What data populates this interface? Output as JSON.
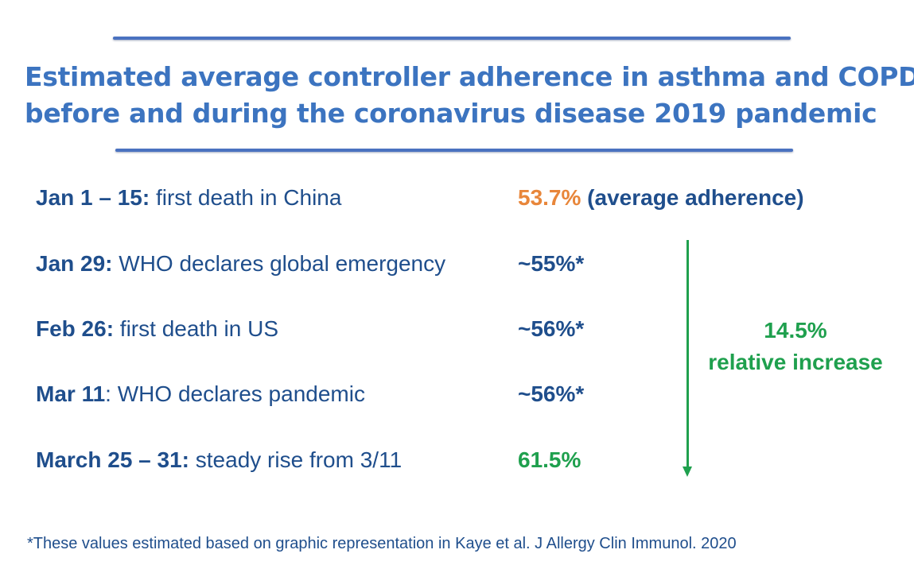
{
  "title": {
    "line1": "Estimated average controller adherence in asthma and COPD",
    "line2": "before and during the coronavirus disease 2019 pandemic"
  },
  "rows": [
    {
      "date": "Jan 1 – 15:",
      "event": " first death in China",
      "value": "53.7%",
      "value_note": " (average adherence)"
    },
    {
      "date": "Jan 29:",
      "event": " WHO declares global emergency",
      "value": "~55%*"
    },
    {
      "date": "Feb 26:",
      "event": " first death in US",
      "value": "~56%*"
    },
    {
      "date": "Mar 11",
      "event": ": WHO declares pandemic",
      "value": "~56%*"
    },
    {
      "date": "March 25 – 31:",
      "event": " steady rise from 3/11",
      "value": "61.5%"
    }
  ],
  "change": {
    "amount": "14.5%",
    "label": "relative increase"
  },
  "footnote": "*These values estimated based on graphic representation in Kaye et al. J Allergy Clin Immunol. 2020",
  "colors": {
    "title": "#3c74c0",
    "text": "#1f4e8c",
    "orange": "#e8863a",
    "green": "#1fa04e",
    "rule": "#4a72c0"
  }
}
